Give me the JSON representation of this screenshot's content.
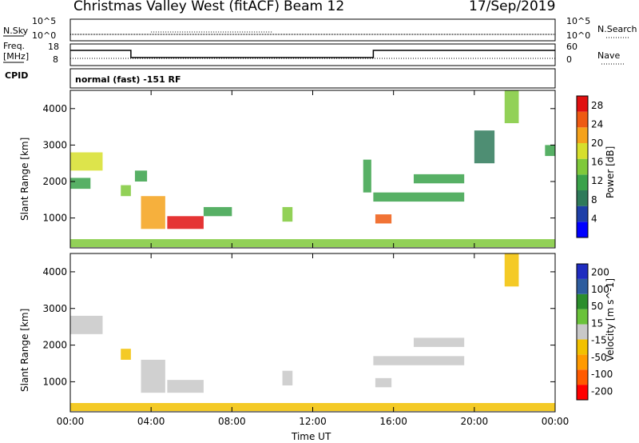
{
  "header": {
    "station": "Christmas Valley West (fitACF)",
    "beam": "Beam 12",
    "date": "17/Sep/2019"
  },
  "summary_panel": {
    "nsky_label": "N.Sky",
    "nsearch_label": "N.Search",
    "nsky_ticks": [
      "10^5",
      "10^0"
    ],
    "nsearch_ticks": [
      "10^5",
      "10^0"
    ],
    "freq_label": "Freq.",
    "freq_unit": "[MHz]",
    "freq_ticks": [
      "18",
      "8"
    ],
    "nave_label": "Nave",
    "nave_ticks": [
      "60",
      "0"
    ],
    "cpid_label": "CPID",
    "mode_text": "normal (fast) -151 RF"
  },
  "colors": {
    "power_scale": [
      "#0000ff",
      "#1e3fa8",
      "#2f7a5a",
      "#3aa24a",
      "#7fc93a",
      "#d7df2c",
      "#f5a21b",
      "#ee5a12",
      "#e01010"
    ],
    "velocity_scale": [
      "#ff0000",
      "#ff5a00",
      "#ff9a00",
      "#f2c100",
      "#c8c8c8",
      "#6ac23a",
      "#2c8e2c",
      "#2e5d9e",
      "#1f2cc0"
    ]
  },
  "chart_data": [
    {
      "type": "heatmap",
      "title": "Power",
      "ylabel": "Slant Range [km]",
      "ylim": [
        180,
        4500
      ],
      "yticks": [
        "1000",
        "2000",
        "3000",
        "4000"
      ],
      "xticks": [
        "00:00",
        "04:00",
        "08:00",
        "12:00",
        "16:00",
        "20:00",
        "00:00"
      ],
      "colorbar": {
        "label": "Power [dB]",
        "ticks": [
          "4",
          "8",
          "12",
          "16",
          "20",
          "24",
          "28"
        ],
        "range": [
          0,
          30
        ]
      },
      "patches": [
        {
          "t0": 0.0,
          "t1": 1.6,
          "r0": 2300,
          "r1": 2800,
          "value": 18
        },
        {
          "t0": 0.0,
          "t1": 1.0,
          "r0": 1800,
          "r1": 2100,
          "value": 12
        },
        {
          "t0": 2.5,
          "t1": 3.0,
          "r0": 1600,
          "r1": 1900,
          "value": 15
        },
        {
          "t0": 3.2,
          "t1": 3.8,
          "r0": 2000,
          "r1": 2300,
          "value": 12
        },
        {
          "t0": 3.5,
          "t1": 4.7,
          "r0": 700,
          "r1": 1600,
          "value": 20
        },
        {
          "t0": 4.8,
          "t1": 6.6,
          "r0": 700,
          "r1": 1050,
          "value": 27
        },
        {
          "t0": 6.6,
          "t1": 8.0,
          "r0": 1050,
          "r1": 1300,
          "value": 10
        },
        {
          "t0": 10.5,
          "t1": 11.0,
          "r0": 900,
          "r1": 1300,
          "value": 14
        },
        {
          "t0": 14.5,
          "t1": 14.9,
          "r0": 1700,
          "r1": 2600,
          "value": 12
        },
        {
          "t0": 15.1,
          "t1": 15.9,
          "r0": 850,
          "r1": 1100,
          "value": 25
        },
        {
          "t0": 15.0,
          "t1": 19.5,
          "r0": 1450,
          "r1": 1700,
          "value": 10
        },
        {
          "t0": 17.0,
          "t1": 19.5,
          "r0": 1950,
          "r1": 2200,
          "value": 11
        },
        {
          "t0": 20.0,
          "t1": 21.0,
          "r0": 2500,
          "r1": 3400,
          "value": 9
        },
        {
          "t0": 21.5,
          "t1": 22.2,
          "r0": 3600,
          "r1": 4500,
          "value": 14
        },
        {
          "t0": 23.5,
          "t1": 24.0,
          "r0": 2700,
          "r1": 3000,
          "value": 10
        },
        {
          "t0": 0.0,
          "t1": 24.0,
          "r0": 200,
          "r1": 420,
          "value": 16
        }
      ]
    },
    {
      "type": "heatmap",
      "title": "Velocity",
      "ylabel": "Slant Range [km]",
      "ylim": [
        180,
        4500
      ],
      "yticks": [
        "1000",
        "2000",
        "3000",
        "4000"
      ],
      "xticks": [
        "00:00",
        "04:00",
        "08:00",
        "12:00",
        "16:00",
        "20:00",
        "00:00"
      ],
      "xlabel": "Time UT",
      "colorbar": {
        "label": "Velocity [m s^-1]",
        "ticks": [
          "200",
          "100",
          "50",
          "15",
          "-15",
          "-50",
          "-100",
          "-200"
        ],
        "range": [
          -250,
          250
        ]
      },
      "patches": [
        {
          "t0": 0.0,
          "t1": 1.6,
          "r0": 2300,
          "r1": 2800,
          "value": 0
        },
        {
          "t0": 2.5,
          "t1": 3.0,
          "r0": 1600,
          "r1": 1900,
          "value": -60
        },
        {
          "t0": 3.5,
          "t1": 4.7,
          "r0": 700,
          "r1": 1600,
          "value": 0
        },
        {
          "t0": 4.8,
          "t1": 6.6,
          "r0": 700,
          "r1": 1050,
          "value": 0
        },
        {
          "t0": 10.5,
          "t1": 11.0,
          "r0": 900,
          "r1": 1300,
          "value": 0
        },
        {
          "t0": 15.1,
          "t1": 15.9,
          "r0": 850,
          "r1": 1100,
          "value": 0
        },
        {
          "t0": 15.0,
          "t1": 19.5,
          "r0": 1450,
          "r1": 1700,
          "value": 0
        },
        {
          "t0": 17.0,
          "t1": 19.5,
          "r0": 1950,
          "r1": 2200,
          "value": 0
        },
        {
          "t0": 21.5,
          "t1": 22.2,
          "r0": 3600,
          "r1": 4500,
          "value": -30
        },
        {
          "t0": 0.0,
          "t1": 24.0,
          "r0": 200,
          "r1": 420,
          "value": -30
        }
      ]
    }
  ]
}
